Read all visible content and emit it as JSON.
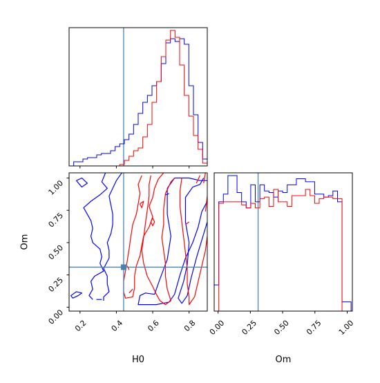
{
  "chart_data": {
    "type": "corner",
    "parameters": [
      "H0",
      "Om"
    ],
    "xlabels": {
      "H0": "H0",
      "Om": "Om"
    },
    "ylabel": "Om",
    "truths": {
      "H0": 0.44,
      "Om": 0.31
    },
    "ranges": {
      "H0": [
        0.14,
        0.9
      ],
      "Om": [
        -0.03,
        1.04
      ]
    },
    "ticks": {
      "H0": [
        0.2,
        0.4,
        0.6,
        0.8
      ],
      "Om": [
        0.0,
        0.25,
        0.5,
        0.75,
        1.0
      ]
    },
    "tick_labels": {
      "H0": [
        "0.2",
        "0.4",
        "0.6",
        "0.8"
      ],
      "Om": [
        "0.00",
        "0.25",
        "0.50",
        "0.75",
        "1.00"
      ]
    },
    "colors": {
      "blue": "#0000ff",
      "red": "#ff0000",
      "truth": "#4682b4"
    },
    "hist_H0": {
      "edges": [
        0.14,
        0.1653,
        0.1907,
        0.216,
        0.2413,
        0.2667,
        0.292,
        0.3173,
        0.3427,
        0.368,
        0.3933,
        0.4187,
        0.444,
        0.4693,
        0.4947,
        0.52,
        0.5453,
        0.5707,
        0.596,
        0.6213,
        0.6467,
        0.672,
        0.6973,
        0.7227,
        0.748,
        0.7733,
        0.7987,
        0.824,
        0.8493,
        0.8747,
        0.9
      ],
      "series": [
        {
          "color": "blue",
          "values": [
            0,
            3,
            3,
            5,
            6,
            6,
            8,
            9,
            9,
            11,
            14,
            16,
            19,
            23,
            30,
            38,
            46,
            51,
            58,
            61,
            74,
            89,
            92,
            90,
            92,
            88,
            58,
            37,
            17,
            5
          ]
        },
        {
          "color": "red",
          "values": [
            0,
            0,
            0,
            0,
            0,
            0,
            0,
            0,
            0,
            0,
            0,
            1,
            4,
            7,
            11,
            13,
            21,
            30,
            46,
            61,
            79,
            91,
            98,
            93,
            73,
            51,
            36,
            22,
            12,
            2
          ]
        }
      ]
    },
    "hist_Om": {
      "edges": [
        -0.03,
        0.0057,
        0.041,
        0.0763,
        0.1117,
        0.147,
        0.1823,
        0.2177,
        0.253,
        0.2883,
        0.3237,
        0.359,
        0.3943,
        0.4297,
        0.465,
        0.5003,
        0.5357,
        0.571,
        0.6063,
        0.6417,
        0.677,
        0.7123,
        0.748,
        0.783,
        0.819,
        0.854,
        0.889,
        0.925,
        0.96,
        0.995,
        1.03
      ],
      "series": [
        {
          "color": "blue",
          "values": [
            17,
            71,
            76,
            88,
            88,
            77,
            71,
            67,
            82,
            71,
            82,
            78,
            77,
            74,
            78,
            77,
            82,
            82,
            86,
            86,
            84,
            84,
            76,
            76,
            74,
            75,
            78,
            71,
            6,
            6
          ]
        },
        {
          "color": "red",
          "values": [
            0,
            70,
            71,
            71,
            71,
            71,
            69,
            67,
            70,
            67,
            73,
            74,
            68,
            79,
            71,
            71,
            68,
            75,
            75,
            75,
            79,
            75,
            70,
            73,
            74,
            74,
            73,
            73,
            0,
            0
          ]
        }
      ]
    },
    "contours": [
      {
        "color": "blue",
        "points": [
          [
            0.34,
            1.04
          ],
          [
            0.32,
            0.97
          ],
          [
            0.35,
            0.92
          ],
          [
            0.31,
            0.87
          ],
          [
            0.26,
            0.82
          ],
          [
            0.22,
            0.77
          ],
          [
            0.24,
            0.72
          ],
          [
            0.26,
            0.67
          ],
          [
            0.27,
            0.61
          ],
          [
            0.26,
            0.55
          ],
          [
            0.27,
            0.5
          ],
          [
            0.31,
            0.45
          ],
          [
            0.32,
            0.39
          ],
          [
            0.31,
            0.34
          ],
          [
            0.33,
            0.28
          ],
          [
            0.28,
            0.24
          ],
          [
            0.26,
            0.2
          ],
          [
            0.27,
            0.14
          ],
          [
            0.25,
            0.09
          ],
          [
            0.27,
            0.06
          ]
        ]
      },
      {
        "color": "blue",
        "points": [
          [
            0.43,
            1.04
          ],
          [
            0.4,
            0.98
          ],
          [
            0.38,
            0.92
          ],
          [
            0.36,
            0.86
          ],
          [
            0.37,
            0.79
          ],
          [
            0.38,
            0.72
          ],
          [
            0.38,
            0.64
          ],
          [
            0.37,
            0.57
          ],
          [
            0.35,
            0.5
          ],
          [
            0.36,
            0.44
          ],
          [
            0.36,
            0.38
          ],
          [
            0.33,
            0.3
          ],
          [
            0.35,
            0.24
          ],
          [
            0.35,
            0.18
          ],
          [
            0.36,
            0.12
          ],
          [
            0.33,
            0.08
          ],
          [
            0.33,
            0.05
          ]
        ]
      },
      {
        "color": "blue",
        "points": [
          [
            0.9,
            0.82
          ],
          [
            0.87,
            0.74
          ],
          [
            0.85,
            0.62
          ],
          [
            0.82,
            0.5
          ],
          [
            0.78,
            0.38
          ],
          [
            0.75,
            0.25
          ],
          [
            0.72,
            0.1
          ],
          [
            0.69,
            0.04
          ],
          [
            0.62,
            0.02
          ],
          [
            0.52,
            0.02
          ],
          [
            0.53,
            0.09
          ],
          [
            0.56,
            0.11
          ],
          [
            0.61,
            0.1
          ],
          [
            0.64,
            0.22
          ],
          [
            0.68,
            0.37
          ],
          [
            0.7,
            0.55
          ],
          [
            0.68,
            0.72
          ],
          [
            0.68,
            0.92
          ],
          [
            0.72,
            1.0
          ],
          [
            0.8,
            1.0
          ],
          [
            0.86,
            0.98
          ],
          [
            0.9,
            0.98
          ]
        ]
      },
      {
        "color": "blue",
        "points": [
          [
            0.9,
            0.66
          ],
          [
            0.87,
            0.52
          ],
          [
            0.84,
            0.38
          ],
          [
            0.81,
            0.22
          ],
          [
            0.79,
            0.09
          ],
          [
            0.76,
            0.03
          ],
          [
            0.74,
            0.07
          ],
          [
            0.77,
            0.2
          ],
          [
            0.79,
            0.33
          ],
          [
            0.8,
            0.5
          ],
          [
            0.78,
            0.66
          ],
          [
            0.78,
            0.85
          ],
          [
            0.82,
            0.93
          ],
          [
            0.86,
            0.95
          ],
          [
            0.88,
            1.0
          ]
        ]
      },
      {
        "color": "blue",
        "points": [
          [
            0.16,
            0.07
          ],
          [
            0.19,
            0.09
          ],
          [
            0.21,
            0.11
          ],
          [
            0.18,
            0.12
          ],
          [
            0.15,
            0.09
          ],
          [
            0.16,
            0.07
          ]
        ]
      },
      {
        "color": "blue",
        "points": [
          [
            0.18,
            0.98
          ],
          [
            0.21,
            0.93
          ],
          [
            0.24,
            0.96
          ],
          [
            0.21,
            1.0
          ],
          [
            0.18,
            0.98
          ]
        ]
      },
      {
        "color": "blue",
        "points": [
          [
            0.29,
            0.06
          ],
          [
            0.32,
            0.06
          ]
        ]
      },
      {
        "color": "red",
        "points": [
          [
            0.54,
            1.02
          ],
          [
            0.52,
            0.95
          ],
          [
            0.53,
            0.88
          ],
          [
            0.52,
            0.8
          ],
          [
            0.51,
            0.72
          ],
          [
            0.49,
            0.64
          ],
          [
            0.48,
            0.55
          ],
          [
            0.47,
            0.45
          ],
          [
            0.46,
            0.36
          ],
          [
            0.45,
            0.28
          ],
          [
            0.44,
            0.2
          ],
          [
            0.44,
            0.12
          ],
          [
            0.45,
            0.07
          ],
          [
            0.49,
            0.08
          ],
          [
            0.5,
            0.15
          ],
          [
            0.5,
            0.24
          ],
          [
            0.51,
            0.32
          ],
          [
            0.53,
            0.4
          ],
          [
            0.54,
            0.48
          ],
          [
            0.55,
            0.55
          ],
          [
            0.58,
            0.62
          ],
          [
            0.6,
            0.7
          ],
          [
            0.58,
            0.78
          ],
          [
            0.6,
            0.85
          ],
          [
            0.61,
            0.92
          ],
          [
            0.63,
            0.99
          ],
          [
            0.66,
            1.04
          ]
        ]
      },
      {
        "color": "red",
        "points": [
          [
            0.59,
            1.02
          ],
          [
            0.58,
            0.95
          ],
          [
            0.58,
            0.86
          ],
          [
            0.57,
            0.75
          ],
          [
            0.56,
            0.65
          ],
          [
            0.55,
            0.54
          ],
          [
            0.54,
            0.44
          ],
          [
            0.55,
            0.34
          ],
          [
            0.57,
            0.24
          ],
          [
            0.6,
            0.16
          ],
          [
            0.62,
            0.1
          ],
          [
            0.64,
            0.05
          ],
          [
            0.67,
            0.02
          ],
          [
            0.7,
            0.05
          ],
          [
            0.68,
            0.14
          ],
          [
            0.67,
            0.24
          ],
          [
            0.67,
            0.34
          ],
          [
            0.66,
            0.44
          ],
          [
            0.65,
            0.54
          ],
          [
            0.66,
            0.64
          ],
          [
            0.66,
            0.76
          ],
          [
            0.67,
            0.88
          ],
          [
            0.7,
            0.97
          ],
          [
            0.72,
            1.0
          ]
        ]
      },
      {
        "color": "red",
        "points": [
          [
            0.76,
            1.0
          ],
          [
            0.75,
            0.9
          ],
          [
            0.75,
            0.78
          ],
          [
            0.76,
            0.66
          ],
          [
            0.77,
            0.54
          ],
          [
            0.78,
            0.42
          ],
          [
            0.79,
            0.3
          ],
          [
            0.79,
            0.18
          ],
          [
            0.8,
            0.08
          ],
          [
            0.8,
            0.02
          ],
          [
            0.83,
            0.08
          ],
          [
            0.85,
            0.2
          ],
          [
            0.87,
            0.32
          ],
          [
            0.89,
            0.44
          ],
          [
            0.9,
            0.55
          ]
        ]
      },
      {
        "color": "red",
        "points": [
          [
            0.86,
            1.02
          ],
          [
            0.84,
            0.96
          ]
        ]
      },
      {
        "color": "red",
        "points": [
          [
            0.89,
            1.04
          ],
          [
            0.88,
            0.96
          ]
        ]
      },
      {
        "color": "red",
        "points": [
          [
            0.9,
            0.86
          ],
          [
            0.89,
            0.74
          ]
        ]
      },
      {
        "color": "red",
        "points": [
          [
            0.78,
            0.64
          ],
          [
            0.8,
            0.66
          ]
        ]
      },
      {
        "color": "red",
        "points": [
          [
            0.53,
            0.8
          ],
          [
            0.55,
            0.82
          ],
          [
            0.54,
            0.77
          ],
          [
            0.53,
            0.8
          ]
        ]
      },
      {
        "color": "red",
        "points": [
          [
            0.59,
            0.66
          ],
          [
            0.6,
            0.69
          ],
          [
            0.61,
            0.66
          ],
          [
            0.6,
            0.63
          ],
          [
            0.59,
            0.66
          ]
        ]
      },
      {
        "color": "red",
        "points": [
          [
            0.47,
            0.11
          ],
          [
            0.49,
            0.14
          ]
        ]
      },
      {
        "color": "red",
        "points": [
          [
            0.46,
            0.32
          ],
          [
            0.47,
            0.29
          ]
        ]
      },
      {
        "color": "blue",
        "points": [
          [
            0.67,
            0.87
          ],
          [
            0.69,
            0.88
          ]
        ]
      }
    ]
  }
}
